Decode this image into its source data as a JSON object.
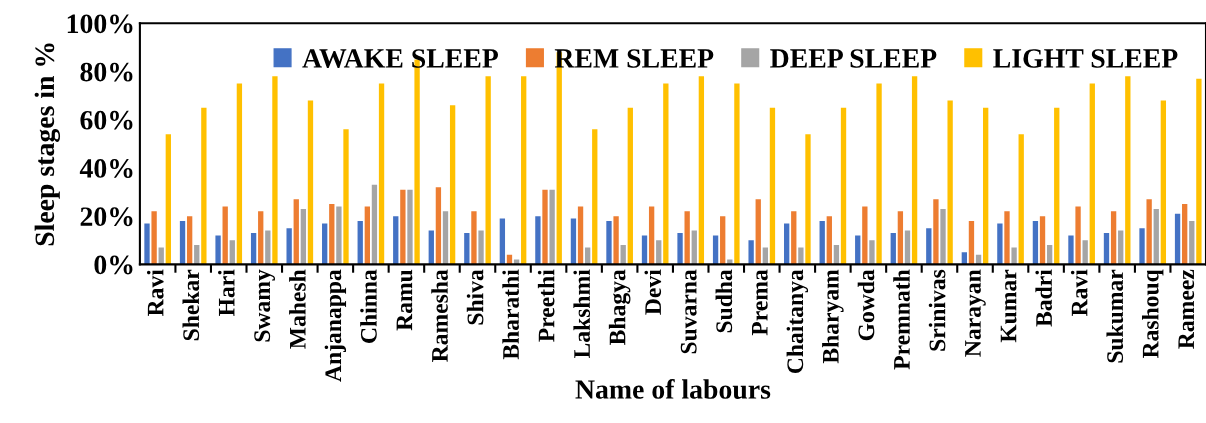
{
  "chart_data": {
    "type": "bar",
    "xlabel": "Name of labours",
    "ylabel": "Sleep stages in %",
    "categories": [
      "Ravi",
      "Shekar",
      "Hari",
      "Swamy",
      "Mahesh",
      "Anjanappa",
      "Chinna",
      "Ramu",
      "Ramesha",
      "Shiva",
      "Bharathi",
      "Preethi",
      "Lakshmi",
      "Bhagya",
      "Devi",
      "Suvarna",
      "Sudha",
      "Prema",
      "Chaitanya",
      "Bharyam",
      "Gowda",
      "Premnath",
      "Srinivas",
      "Narayan",
      "Kumar",
      "Badri",
      "Ravi",
      "Sukumar",
      "Rashouq",
      "Rameez"
    ],
    "series": [
      {
        "name": "AWAKE SLEEP",
        "color": "#4472c4",
        "values": [
          17,
          18,
          12,
          13,
          15,
          17,
          18,
          20,
          14,
          13,
          19,
          20,
          19,
          18,
          12,
          13,
          12,
          10,
          17,
          18,
          12,
          13,
          15,
          5,
          17,
          18,
          12,
          13,
          15,
          21
        ]
      },
      {
        "name": "REM SLEEP",
        "color": "#ed7d31",
        "values": [
          22,
          20,
          24,
          22,
          27,
          25,
          24,
          31,
          32,
          22,
          4,
          31,
          24,
          20,
          24,
          22,
          20,
          27,
          22,
          20,
          24,
          22,
          27,
          18,
          22,
          20,
          24,
          22,
          27,
          25
        ]
      },
      {
        "name": "DEEP SLEEP",
        "color": "#a5a5a5",
        "values": [
          7,
          8,
          10,
          14,
          23,
          24,
          33,
          31,
          22,
          14,
          2,
          31,
          7,
          8,
          10,
          14,
          2,
          7,
          7,
          8,
          10,
          14,
          23,
          4,
          7,
          8,
          10,
          14,
          23,
          18
        ]
      },
      {
        "name": "LIGHT SLEEP",
        "color": "#ffc000",
        "values": [
          54,
          65,
          75,
          78,
          68,
          56,
          75,
          85,
          66,
          78,
          78,
          88,
          56,
          65,
          75,
          78,
          75,
          65,
          54,
          65,
          75,
          78,
          68,
          65,
          54,
          65,
          75,
          78,
          68,
          77
        ]
      }
    ],
    "ylim": [
      0,
      100
    ],
    "yticks": [
      {
        "value": 0,
        "label": "0%"
      },
      {
        "value": 20,
        "label": "20%"
      },
      {
        "value": 40,
        "label": "40%"
      },
      {
        "value": 60,
        "label": "60%"
      },
      {
        "value": 80,
        "label": "80%"
      },
      {
        "value": 100,
        "label": "100%"
      }
    ],
    "legend": "top",
    "grid": false
  }
}
